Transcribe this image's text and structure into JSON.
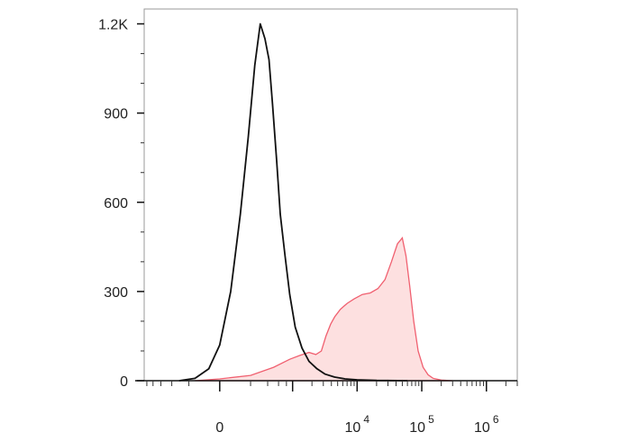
{
  "chart_data": {
    "type": "area",
    "title": "",
    "xlabel": "",
    "ylabel": "",
    "x_scale": "biexponential",
    "ylim": [
      0,
      1250
    ],
    "y_ticks": [
      {
        "value": 0,
        "label": "0"
      },
      {
        "value": 300,
        "label": "300"
      },
      {
        "value": 600,
        "label": "600"
      },
      {
        "value": 900,
        "label": "900"
      },
      {
        "value": 1200,
        "label": "1.2K"
      }
    ],
    "x_ticks": [
      {
        "value": 0,
        "label": "0",
        "exp": ""
      },
      {
        "value": 10000,
        "label": "10",
        "exp": "4"
      },
      {
        "value": 100000,
        "label": "10",
        "exp": "5"
      },
      {
        "value": 1000000,
        "label": "10",
        "exp": "6"
      }
    ],
    "legend": "none",
    "grid": false,
    "colors": {
      "unstained_line": "#111111",
      "stained_line": "#f06070",
      "stained_fill": "#fde0e0"
    },
    "series": [
      {
        "style": "line",
        "color": "#111111",
        "points": [
          [
            -300,
            0
          ],
          [
            -150,
            8
          ],
          [
            -60,
            40
          ],
          [
            0,
            120
          ],
          [
            60,
            300
          ],
          [
            120,
            560
          ],
          [
            180,
            820
          ],
          [
            240,
            1060
          ],
          [
            300,
            1200
          ],
          [
            360,
            1150
          ],
          [
            420,
            1080
          ],
          [
            480,
            930
          ],
          [
            560,
            740
          ],
          [
            640,
            560
          ],
          [
            760,
            420
          ],
          [
            900,
            290
          ],
          [
            1100,
            180
          ],
          [
            1400,
            110
          ],
          [
            1800,
            65
          ],
          [
            2400,
            40
          ],
          [
            3200,
            22
          ],
          [
            4500,
            12
          ],
          [
            6500,
            6
          ],
          [
            10000,
            3
          ],
          [
            20000,
            1
          ],
          [
            60000,
            0
          ]
        ]
      },
      {
        "style": "filled-area",
        "color": "#f06070",
        "fill": "#fde0e0",
        "points": [
          [
            -150,
            0
          ],
          [
            0,
            6
          ],
          [
            200,
            18
          ],
          [
            500,
            45
          ],
          [
            900,
            72
          ],
          [
            1300,
            85
          ],
          [
            1800,
            95
          ],
          [
            2300,
            88
          ],
          [
            2800,
            100
          ],
          [
            3300,
            150
          ],
          [
            3900,
            190
          ],
          [
            4500,
            215
          ],
          [
            5500,
            240
          ],
          [
            7000,
            260
          ],
          [
            9000,
            275
          ],
          [
            12000,
            290
          ],
          [
            16000,
            295
          ],
          [
            21000,
            310
          ],
          [
            27000,
            340
          ],
          [
            34000,
            400
          ],
          [
            42000,
            460
          ],
          [
            50000,
            480
          ],
          [
            57000,
            420
          ],
          [
            65000,
            320
          ],
          [
            75000,
            200
          ],
          [
            88000,
            100
          ],
          [
            105000,
            45
          ],
          [
            125000,
            20
          ],
          [
            150000,
            8
          ],
          [
            200000,
            2
          ],
          [
            300000,
            0
          ]
        ]
      }
    ]
  }
}
